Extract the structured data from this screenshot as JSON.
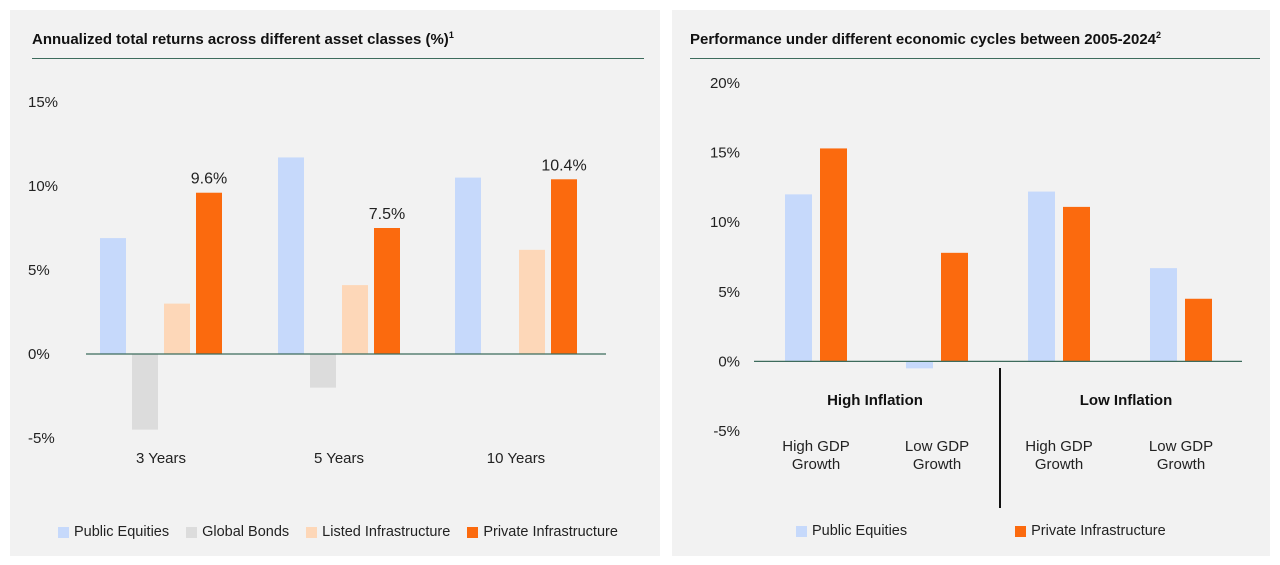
{
  "chart_data": [
    {
      "type": "bar",
      "title": "Annualized total returns across different asset classes (%)",
      "title_footnote": "1",
      "categories": [
        "3 Years",
        "5 Years",
        "10 Years"
      ],
      "ylim": [
        -5,
        15
      ],
      "yticks": [
        "15%",
        "10%",
        "5%",
        "0%",
        "-5%"
      ],
      "ytick_values": [
        15,
        10,
        5,
        0,
        -5
      ],
      "series": [
        {
          "name": "Public Equities",
          "color": "#c6d9fb",
          "values": [
            6.9,
            11.7,
            10.5
          ]
        },
        {
          "name": "Global Bonds",
          "color": "#dcdcdc",
          "values": [
            -4.5,
            -2.0,
            0
          ]
        },
        {
          "name": "Listed Infrastructure",
          "color": "#fdd7b8",
          "values": [
            3.0,
            4.1,
            6.2
          ]
        },
        {
          "name": "Private Infrastructure",
          "color": "#fb6a0e",
          "values": [
            9.6,
            7.5,
            10.4
          ]
        }
      ],
      "data_labels": [
        "9.6%",
        "7.5%",
        "10.4%"
      ],
      "legend": "bottom"
    },
    {
      "type": "bar",
      "title": "Performance under different economic cycles between 2005-2024",
      "title_footnote": "2",
      "categories": [
        "High GDP Growth",
        "Low GDP Growth",
        "High GDP Growth",
        "Low GDP Growth"
      ],
      "category_lines": [
        [
          "High GDP",
          "Growth"
        ],
        [
          "Low GDP",
          "Growth"
        ],
        [
          "High GDP",
          "Growth"
        ],
        [
          "Low GDP",
          "Growth"
        ]
      ],
      "groups": [
        "High Inflation",
        "Low Inflation"
      ],
      "ylim": [
        -5,
        20
      ],
      "yticks": [
        "20%",
        "15%",
        "10%",
        "5%",
        "0%",
        "-5%"
      ],
      "ytick_values": [
        20,
        15,
        10,
        5,
        0,
        -5
      ],
      "series": [
        {
          "name": "Public Equities",
          "color": "#c6d9fb",
          "values": [
            12.0,
            -0.5,
            12.2,
            6.7
          ]
        },
        {
          "name": "Private Infrastructure",
          "color": "#fb6a0e",
          "values": [
            15.3,
            7.8,
            11.1,
            4.5
          ]
        }
      ],
      "legend": "bottom"
    }
  ]
}
